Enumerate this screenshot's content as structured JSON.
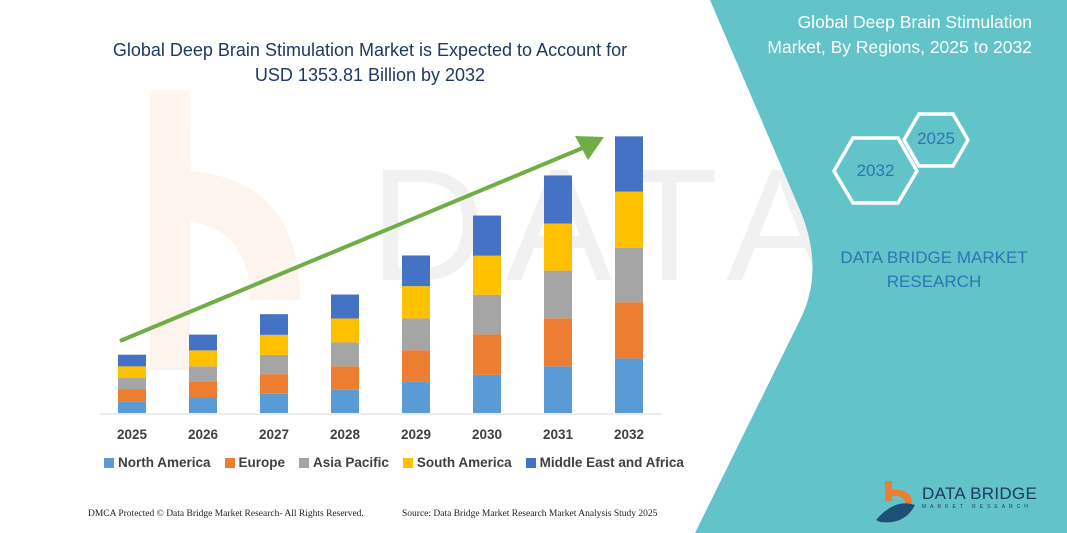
{
  "colors": {
    "panel": "#62c3c8",
    "arrow": "#70ad47",
    "title": "#1f3864",
    "accent_text": "#2e75b6"
  },
  "header": {
    "title_line1": "Global Deep Brain Stimulation Market is Expected to Account for",
    "title_line2": "USD 1353.81 Billion by 2032"
  },
  "side_panel": {
    "title_line1": "Global Deep Brain Stimulation",
    "title_line2": "Market, By Regions, 2025 to 2032",
    "hex_start": "2025",
    "hex_end": "2032",
    "brand_line1": "DATA BRIDGE MARKET",
    "brand_line2": "RESEARCH",
    "logo_text": "DATA BRIDGE",
    "logo_sub": "MARKET RESEARCH"
  },
  "footer": {
    "left": "DMCA Protected © Data Bridge Market Research- All Rights Reserved.",
    "right": "Source: Data Bridge Market Research Market Analysis Study 2025"
  },
  "chart_data": {
    "type": "bar",
    "stacked": true,
    "title": "Global Deep Brain Stimulation Market is Expected to Account for USD 1353.81 Billion by 2032",
    "xlabel": "",
    "ylabel": "",
    "y_axis_shown": false,
    "grid": false,
    "legend_position": "bottom",
    "trend_arrow": true,
    "categories": [
      "2025",
      "2026",
      "2027",
      "2028",
      "2029",
      "2030",
      "2031",
      "2032"
    ],
    "series": [
      {
        "name": "North America",
        "color": "#5b9bd5",
        "values": [
          57,
          78,
          94,
          114,
          155,
          187,
          228,
          267
        ]
      },
      {
        "name": "Europe",
        "color": "#ed7d31",
        "values": [
          60,
          77,
          96,
          114,
          152,
          197,
          235,
          274
        ]
      },
      {
        "name": "Asia Pacific",
        "color": "#a5a5a5",
        "values": [
          54,
          73,
          94,
          117,
          155,
          194,
          233,
          267
        ]
      },
      {
        "name": "South America",
        "color": "#ffc000",
        "values": [
          57,
          78,
          98,
          117,
          158,
          191,
          230,
          274
        ]
      },
      {
        "name": "Middle East and Africa",
        "color": "#4472c4",
        "values": [
          57,
          77,
          101,
          117,
          150,
          196,
          235,
          270
        ]
      }
    ]
  }
}
